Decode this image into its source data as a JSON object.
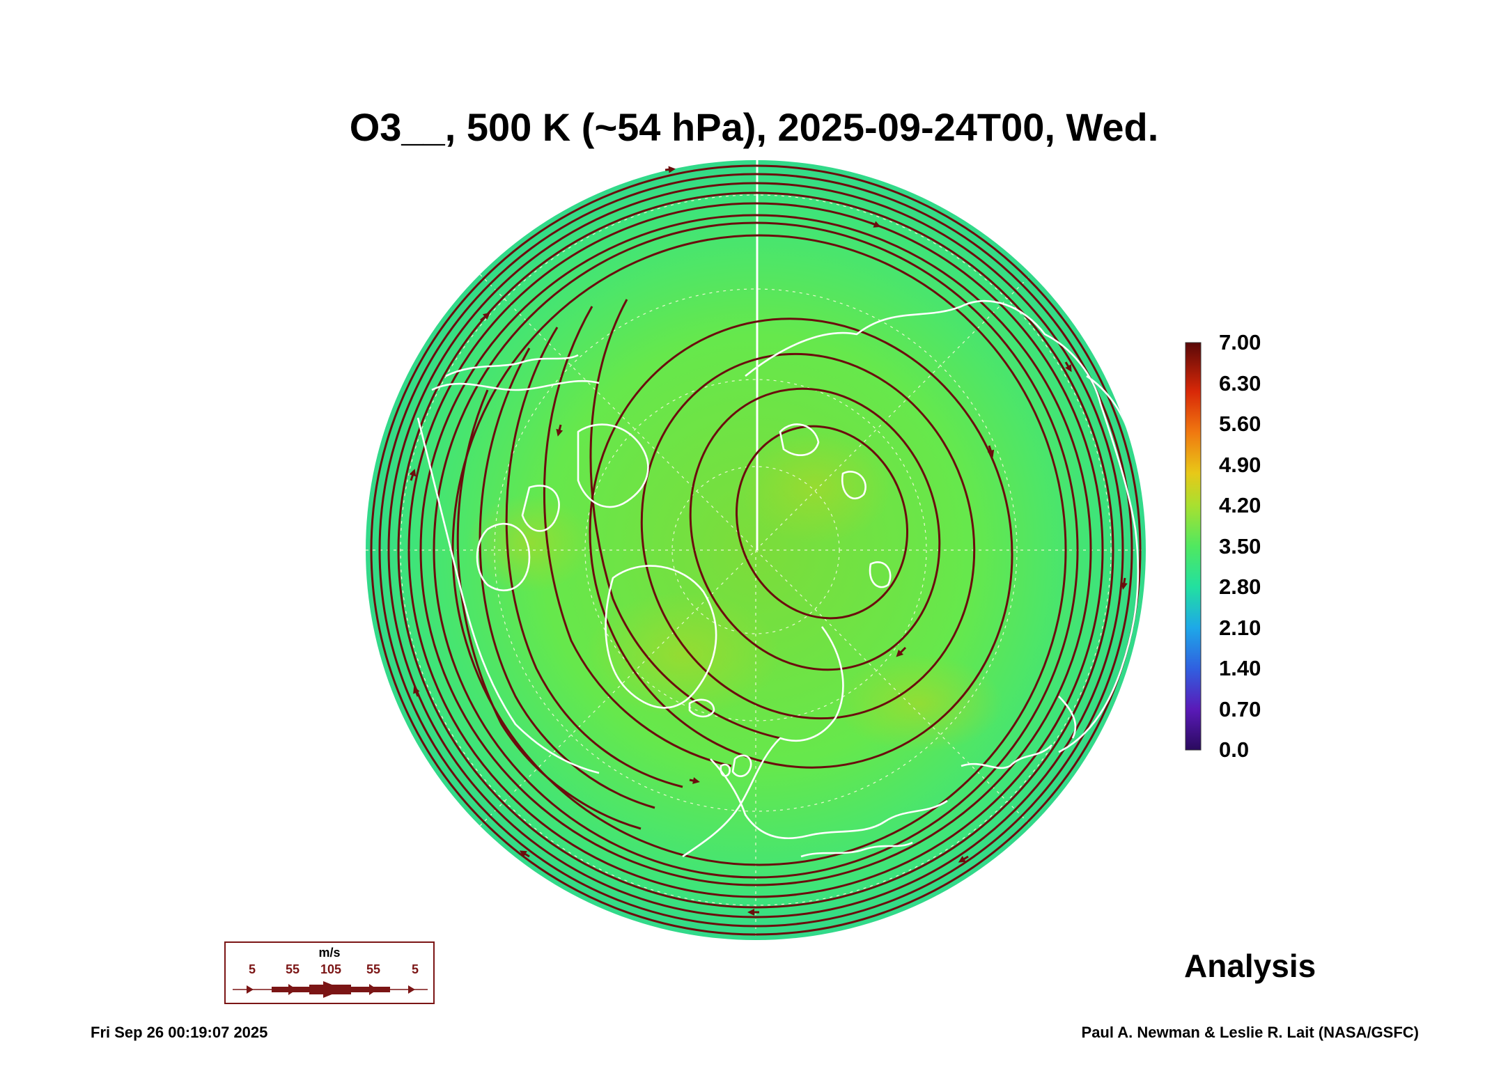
{
  "header": {
    "title": "O3__, 500 K (~54 hPa), 2025-09-24T00, Wed."
  },
  "map": {
    "projection": "north-polar-stereographic",
    "field": "ozone mixing ratio",
    "colors": {
      "low": "#3b2a8f",
      "mid": "#3be070",
      "field": "#6ee84a",
      "high": "#6b0d0d",
      "streamline": "#6b0d0d",
      "coast": "#ffffff"
    }
  },
  "colorbar": {
    "labels": [
      "7.00",
      "6.30",
      "5.60",
      "4.90",
      "4.20",
      "3.50",
      "2.80",
      "2.10",
      "1.40",
      "0.70",
      "0.0"
    ],
    "min": 0.0,
    "max": 7.0
  },
  "wind_legend": {
    "unit": "m/s",
    "labels": [
      "5",
      "55",
      "105",
      "55",
      "5"
    ]
  },
  "footer": {
    "label": "Analysis",
    "timestamp": "Fri Sep 26 00:19:07 2025",
    "credit": "Paul A. Newman & Leslie R. Lait (NASA/GSFC)"
  }
}
